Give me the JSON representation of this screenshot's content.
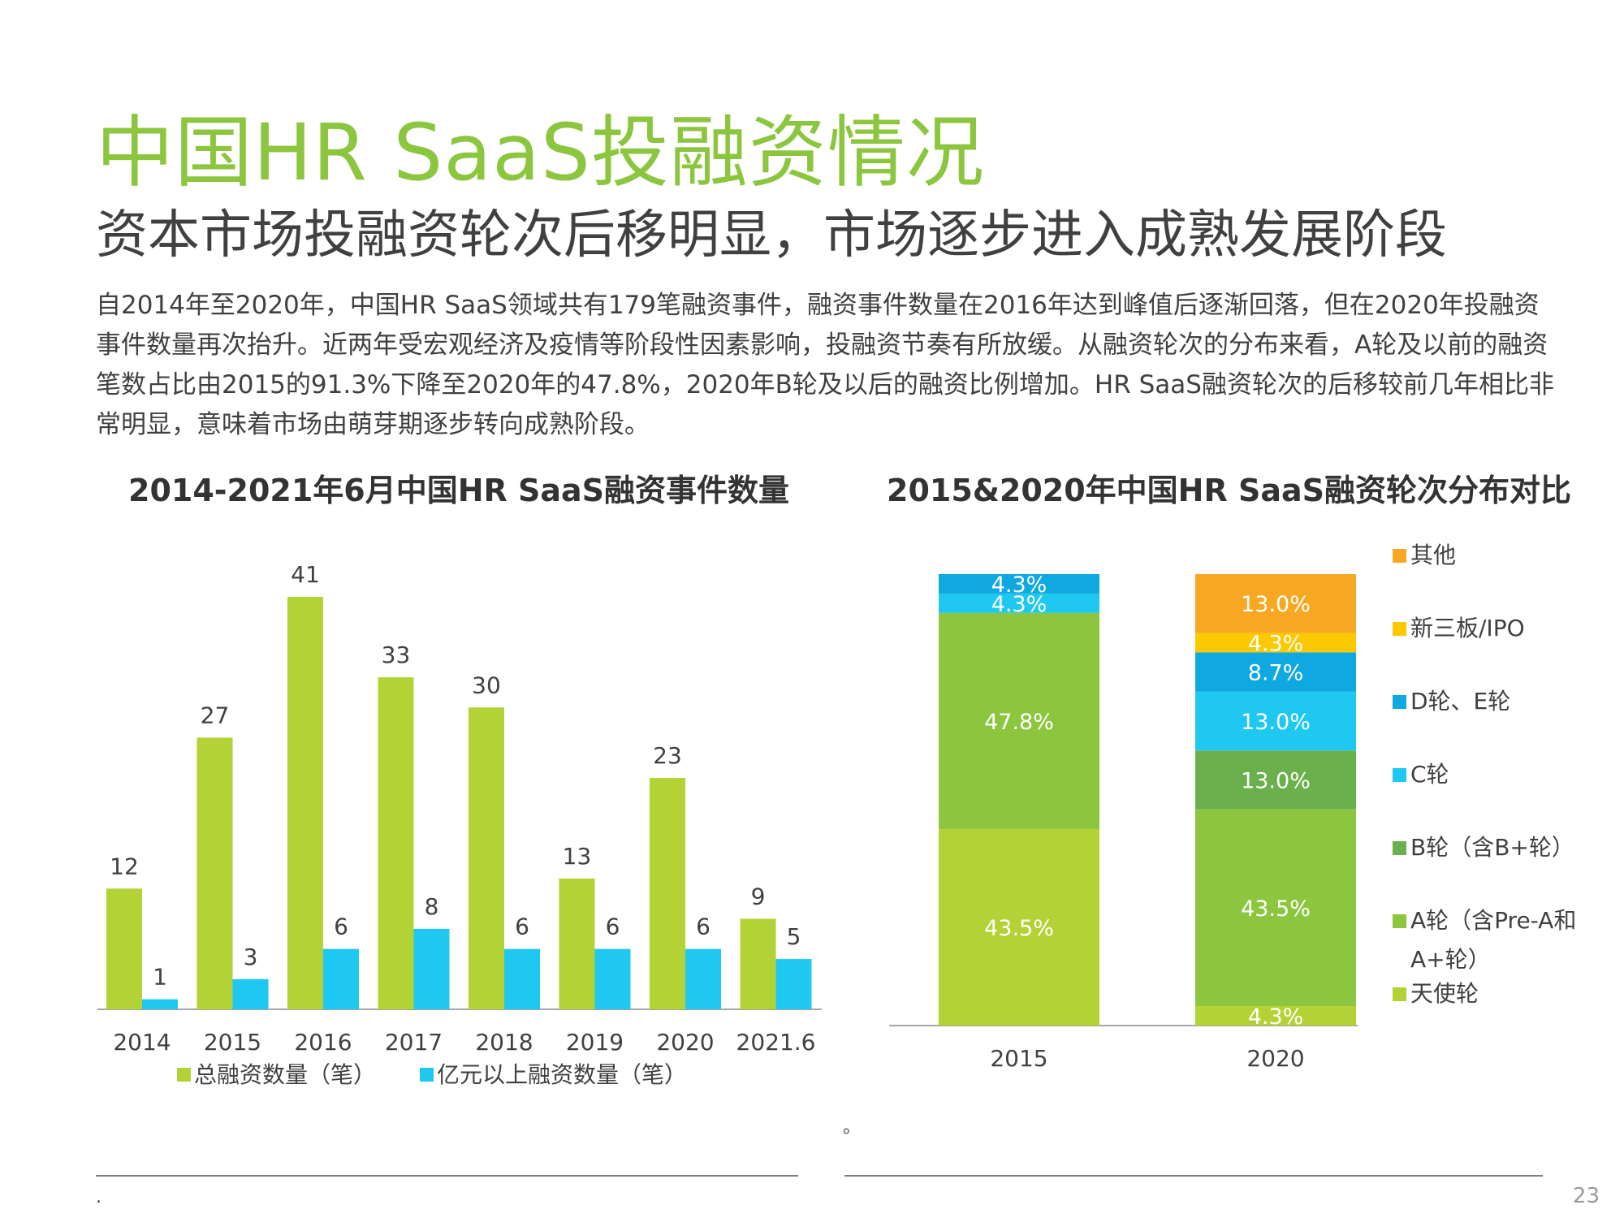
{
  "header": {
    "title": "中国HR SaaS投融资情况",
    "subtitle": "资本市场投融资轮次后移明显，市场逐步进入成熟发展阶段",
    "intro": "自2014年至2020年，中国HR SaaS领域共有179笔融资事件，融资事件数量在2016年达到峰值后逐渐回落，但在2020年投融资事件数量再次抬升。近两年受宏观经济及疫情等阶段性因素影响，投融资节奏有所放缓。从融资轮次的分布来看，A轮及以前的融资笔数占比由2015的91.3%下降至2020年的47.8%，2020年B轮及以后的融资比例增加。HR SaaS融资轮次的后移较前几年相比非常明显，意味着市场由萌芽期逐步转向成熟阶段。"
  },
  "footer": {
    "note_mark": "。",
    "dot": ".",
    "page_number": "23"
  },
  "chart_data": [
    {
      "type": "bar",
      "title": "2014-2021年6月中国HR SaaS融资事件数量",
      "categories": [
        "2014",
        "2015",
        "2016",
        "2017",
        "2018",
        "2019",
        "2020",
        "2021.6"
      ],
      "series": [
        {
          "name": "总融资数量（笔）",
          "color": "#b2d235",
          "values": [
            12,
            27,
            41,
            33,
            30,
            13,
            23,
            9
          ]
        },
        {
          "name": "亿元以上融资数量（笔）",
          "color": "#1fc8f0",
          "values": [
            1,
            3,
            6,
            8,
            6,
            6,
            6,
            5
          ]
        }
      ],
      "ylim": [
        0,
        41
      ],
      "grid": false,
      "legend": "bottom"
    },
    {
      "type": "bar",
      "stacked": true,
      "percent": true,
      "title": "2015&2020年中国HR SaaS融资轮次分布对比",
      "categories": [
        "2015",
        "2020"
      ],
      "series": [
        {
          "name": "天使轮",
          "color": "#b2d235",
          "values": [
            43.5,
            4.3
          ]
        },
        {
          "name": "A轮（含Pre-A和A+轮）",
          "color": "#8cc63f",
          "values": [
            47.8,
            43.5
          ]
        },
        {
          "name": "B轮（含B+轮）",
          "color": "#6ab04c",
          "values": [
            0,
            13.0
          ]
        },
        {
          "name": "C轮",
          "color": "#1fc8f0",
          "values": [
            4.3,
            13.0
          ]
        },
        {
          "name": "D轮、E轮",
          "color": "#0fa8e0",
          "values": [
            4.3,
            8.7
          ]
        },
        {
          "name": "新三板/IPO",
          "color": "#fcc800",
          "values": [
            0,
            4.3
          ]
        },
        {
          "name": "其他",
          "color": "#f7a823",
          "values": [
            0,
            13.0
          ]
        }
      ],
      "value_labels": [
        [
          "43.5%",
          "47.8%",
          "",
          "4.3%",
          "4.3%",
          "",
          ""
        ],
        [
          "4.3%",
          "43.5%",
          "13.0%",
          "13.0%",
          "8.7%",
          "4.3%",
          "13.0%"
        ]
      ],
      "ylim": [
        0,
        100
      ],
      "legend": "right"
    }
  ]
}
